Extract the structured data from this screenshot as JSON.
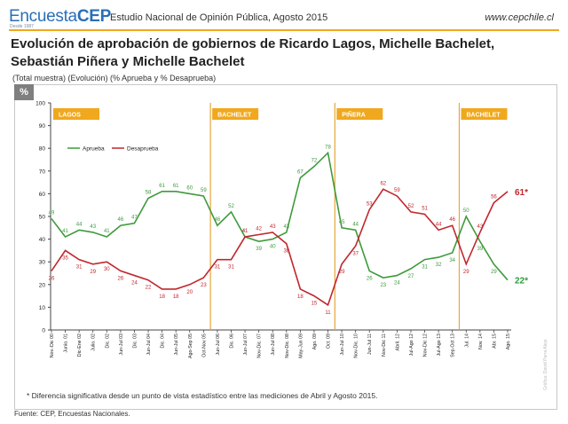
{
  "header": {
    "logo_light": "Encuesta",
    "logo_bold": "CEP",
    "logo_sub": "Desde 1987",
    "study": "Estudio Nacional de Opinión Pública, Agosto 2015",
    "website": "www.cepchile.cl"
  },
  "title": "Evolución de aprobación de gobiernos de Ricardo Lagos, Michelle Bachelet, Sebastián Piñera y Michelle Bachelet",
  "subtitle": "(Total muestra) (Evolución)  (% Aprueba y % Desaprueba)",
  "unit_badge": "%",
  "footnote": "* Diferencia significativa desde un punto de vista estadístico entre las mediciones de Abril y Agosto 2015.",
  "source": "Fuente: CEP, Encuestas Nacionales.",
  "credit": "Gráfica: David Parra Alejo",
  "colors": {
    "approve": "#3f9a3c",
    "disapprove": "#c0272d",
    "period_band": "#f0a81e",
    "divider": "#e6a63a",
    "end_label_approve": "#2d9b3c",
    "end_label_disapprove": "#c0272d"
  },
  "chart_data": {
    "type": "line",
    "title": "Evolución de aprobación de gobiernos",
    "xlabel": "",
    "ylabel": "%",
    "ylim": [
      0,
      100
    ],
    "yticks": [
      0,
      10,
      20,
      30,
      40,
      50,
      60,
      70,
      80,
      90,
      100
    ],
    "grid": false,
    "legend": "top-left",
    "categories": [
      "Nov.-Dic 00",
      "Junio. 01",
      "Dic-Ene 02",
      "Julio. 02",
      "Dic. 02",
      "Jun-Jul 03",
      "Dic. 03",
      "Jun-Jul 04",
      "Dic. 04",
      "Jun-Jul 05",
      "Ago-Sep 05",
      "Oct-Nov 05",
      "Jun-Jul 06",
      "Dic. 06",
      "Jun-Jul 07",
      "Nov-Dic. 07",
      "Jun-Jul 08",
      "Nov-Dic. 08",
      "May-Jun 09",
      "Ago. 09",
      "Oct. 09",
      "Jun-Jul 10",
      "Nov-Dic. 10",
      "Jun-Jul 11",
      "Nov-Dic 11",
      "Abril. 12",
      "Jul-Ago 12",
      "Nov-Dic 12",
      "Jul-Ago 13",
      "Sep-Oct 13",
      "Jul. 14",
      "Nov. 14",
      "Abr. 15",
      "Ago. 15"
    ],
    "series": [
      {
        "name": "Aprueba",
        "values": [
          49,
          41,
          44,
          43,
          41,
          46,
          47,
          58,
          61,
          61,
          60,
          59,
          46,
          52,
          41,
          39,
          40,
          43,
          67,
          72,
          78,
          45,
          44,
          26,
          23,
          24,
          27,
          31,
          32,
          34,
          50,
          39,
          29,
          22
        ]
      },
      {
        "name": "Desaprueba",
        "values": [
          26,
          35,
          31,
          29,
          30,
          26,
          24,
          22,
          18,
          18,
          20,
          23,
          31,
          31,
          41,
          42,
          43,
          38,
          18,
          15,
          11,
          29,
          37,
          53,
          62,
          59,
          52,
          51,
          44,
          46,
          29,
          43,
          56,
          61
        ]
      }
    ],
    "period_labels": [
      "LAGOS",
      "BACHELET",
      "PIÑERA",
      "BACHELET"
    ],
    "period_starts": [
      0,
      11.5,
      20.5,
      29.5
    ],
    "end_labels": {
      "Aprueba": "22*",
      "Desaprueba": "61*"
    }
  }
}
